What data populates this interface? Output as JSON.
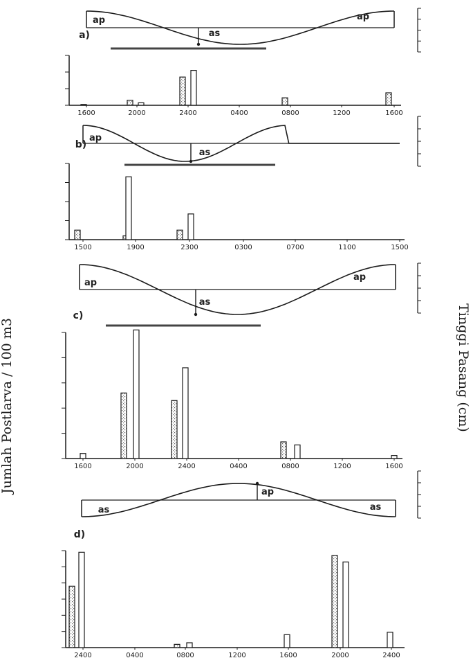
{
  "page": {
    "ylabel_left": "Jumlah Postlarva / 100 m3",
    "ylabel_right": "Tinggi Pasang (cm)"
  },
  "chart_data": [
    {
      "type": "bar",
      "panel": "a)",
      "tide_labels": [
        "ap",
        "as",
        "ap"
      ],
      "x_ticks": [
        "1600",
        "2000",
        "2400",
        "0400",
        "0800",
        "1200",
        "1600"
      ],
      "series": [
        {
          "values": [
            5,
            30,
            170,
            0,
            45,
            0,
            75
          ]
        },
        {
          "values": [
            0,
            15,
            210,
            0,
            0,
            0,
            0
          ]
        }
      ]
    },
    {
      "type": "bar",
      "panel": "b)",
      "tide_labels": [
        "ap",
        "as"
      ],
      "x_ticks": [
        "1500",
        "1900",
        "2300",
        "0300",
        "0700",
        "1100",
        "1500"
      ],
      "series": [
        {
          "values": [
            50,
            20,
            50,
            0,
            0,
            0,
            0
          ]
        },
        {
          "values": [
            0,
            330,
            135,
            0,
            0,
            0,
            0
          ]
        }
      ]
    },
    {
      "type": "bar",
      "panel": "c)",
      "tide_labels": [
        "ap",
        "as",
        "ap"
      ],
      "x_ticks": [
        "1600",
        "2000",
        "2400",
        "0400",
        "0800",
        "1200",
        "1600"
      ],
      "series": [
        {
          "values": [
            0,
            1300,
            1150,
            0,
            330,
            0,
            0
          ]
        },
        {
          "values": [
            100,
            2550,
            1800,
            0,
            270,
            0,
            60
          ]
        }
      ]
    },
    {
      "type": "bar",
      "panel": "d)",
      "tide_labels": [
        "as",
        "ap",
        "as"
      ],
      "x_ticks": [
        "2400",
        "0400",
        "0800",
        "1200",
        "1600",
        "2000",
        "2400"
      ],
      "series": [
        {
          "values": [
            380,
            0,
            20,
            0,
            0,
            570,
            0
          ]
        },
        {
          "values": [
            590,
            0,
            30,
            0,
            80,
            530,
            95
          ]
        }
      ]
    }
  ]
}
